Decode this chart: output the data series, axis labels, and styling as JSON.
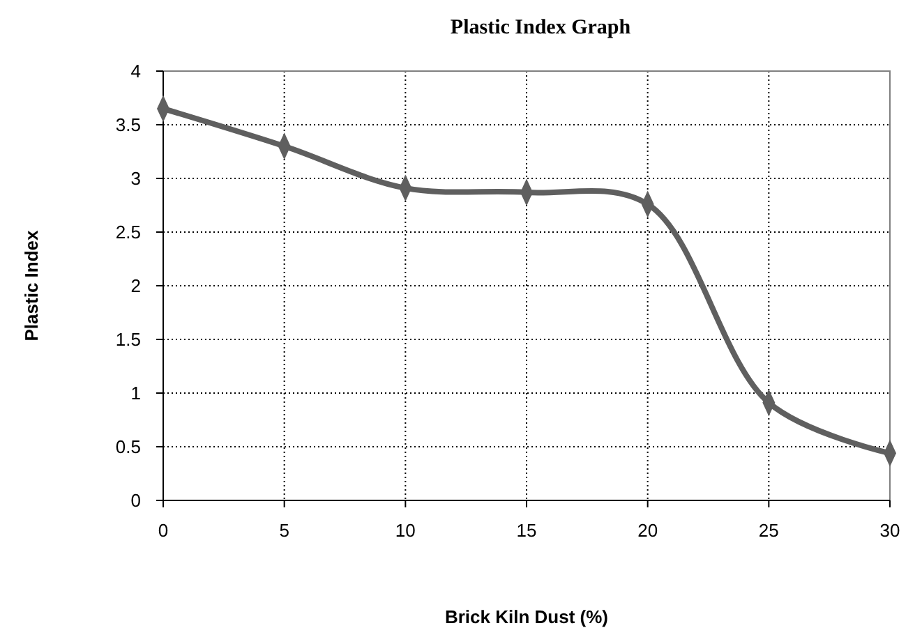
{
  "chart_data": {
    "type": "line",
    "title": "Plastic Index Graph",
    "xlabel": "Brick Kiln Dust (%)",
    "ylabel": "Plastic Index",
    "x": [
      0,
      5,
      10,
      15,
      20,
      25,
      30
    ],
    "series": [
      {
        "color": "#5f5f5f",
        "values": [
          3.65,
          3.3,
          2.91,
          2.87,
          2.76,
          0.91,
          0.44
        ]
      }
    ],
    "xlim": [
      0,
      30
    ],
    "xticks": [
      0,
      5,
      10,
      15,
      20,
      25,
      30
    ],
    "ylim": [
      0,
      4
    ],
    "yticks": [
      0,
      0.5,
      1,
      1.5,
      2,
      2.5,
      3,
      3.5,
      4
    ],
    "grid": true,
    "marker": "diamond",
    "line_style": "solid"
  }
}
